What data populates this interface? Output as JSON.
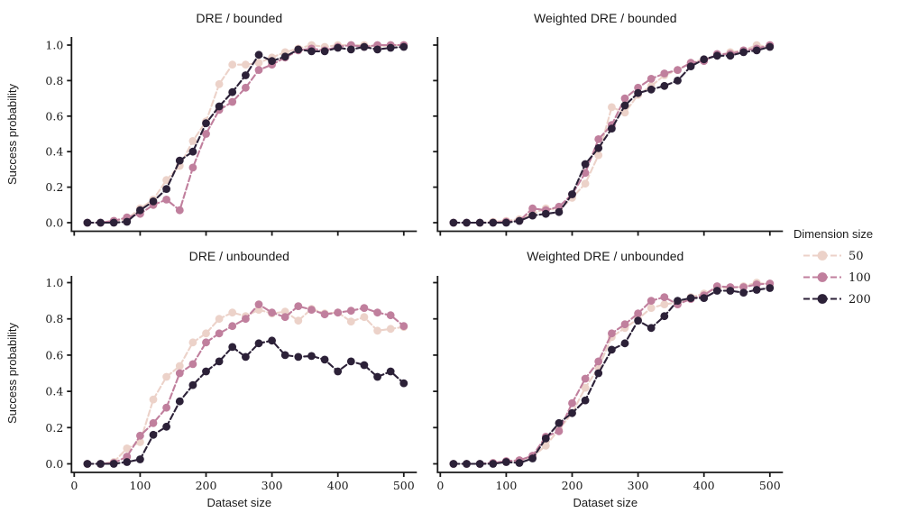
{
  "figure": {
    "background": "#ffffff",
    "text_color": "#1a1a1a",
    "axis_color": "#1a1a1a",
    "ylabel": "Success probability",
    "xlabel": "Dataset size"
  },
  "legend": {
    "title": "Dimension size",
    "entries": [
      {
        "label": "50",
        "color": "#ecd2c9"
      },
      {
        "label": "100",
        "color": "#c07f9d"
      },
      {
        "label": "200",
        "color": "#2c2138"
      }
    ]
  },
  "axes": {
    "x_tick_labels": [
      "0",
      "100",
      "200",
      "300",
      "400",
      "500"
    ],
    "x_tick_values": [
      0,
      100,
      200,
      300,
      400,
      500
    ],
    "y_tick_labels": [
      "0.0",
      "0.2",
      "0.4",
      "0.6",
      "0.8",
      "1.0"
    ],
    "y_tick_values": [
      0.0,
      0.2,
      0.4,
      0.6,
      0.8,
      1.0
    ],
    "xlim": [
      -6,
      520
    ],
    "ylim": [
      0,
      1.05
    ],
    "grid": false
  },
  "chart_data": [
    {
      "type": "line",
      "title": "DRE / bounded",
      "xlabel": "",
      "ylabel": "Success probability",
      "x": [
        20,
        40,
        60,
        80,
        100,
        120,
        140,
        160,
        180,
        200,
        220,
        240,
        260,
        280,
        300,
        320,
        340,
        360,
        380,
        400,
        420,
        440,
        460,
        480,
        500
      ],
      "series": [
        {
          "name": "50",
          "values": [
            0,
            0,
            0.01,
            0.02,
            0.08,
            0.13,
            0.24,
            0.32,
            0.46,
            0.57,
            0.78,
            0.89,
            0.89,
            0.9,
            0.93,
            0.96,
            0.98,
            1.0,
            0.99,
            1.0,
            1.0,
            1.0,
            0.99,
            1.0,
            1.0
          ]
        },
        {
          "name": "100",
          "values": [
            0,
            0,
            0.01,
            0.03,
            0.05,
            0.1,
            0.13,
            0.07,
            0.31,
            0.5,
            0.635,
            0.68,
            0.76,
            0.86,
            0.89,
            0.93,
            0.97,
            0.98,
            0.97,
            0.99,
            1.0,
            0.99,
            1.0,
            1.0,
            1.0
          ]
        },
        {
          "name": "200",
          "values": [
            0,
            0,
            0,
            0.005,
            0.07,
            0.12,
            0.19,
            0.35,
            0.4,
            0.56,
            0.655,
            0.735,
            0.83,
            0.945,
            0.91,
            0.935,
            0.975,
            0.965,
            0.965,
            0.985,
            0.975,
            0.99,
            0.975,
            0.985,
            0.99
          ]
        }
      ]
    },
    {
      "type": "line",
      "title": "Weighted DRE / bounded",
      "xlabel": "",
      "ylabel": "",
      "x": [
        20,
        40,
        60,
        80,
        100,
        120,
        140,
        160,
        180,
        200,
        220,
        240,
        260,
        280,
        300,
        320,
        340,
        360,
        380,
        400,
        420,
        440,
        460,
        480,
        500
      ],
      "series": [
        {
          "name": "50",
          "values": [
            0,
            0,
            0,
            0.005,
            0.01,
            0.02,
            0.05,
            0.08,
            0.07,
            0.14,
            0.22,
            0.38,
            0.65,
            0.62,
            0.72,
            0.77,
            0.83,
            0.86,
            0.9,
            0.92,
            0.94,
            0.96,
            0.97,
            1.0,
            0.99
          ]
        },
        {
          "name": "100",
          "values": [
            0,
            0,
            0,
            0,
            0.005,
            0.01,
            0.08,
            0.07,
            0.09,
            0.16,
            0.28,
            0.47,
            0.55,
            0.7,
            0.76,
            0.81,
            0.84,
            0.86,
            0.9,
            0.91,
            0.95,
            0.95,
            0.97,
            0.98,
            1.0
          ]
        },
        {
          "name": "200",
          "values": [
            0,
            0,
            0,
            0,
            0,
            0.01,
            0.04,
            0.05,
            0.06,
            0.16,
            0.33,
            0.42,
            0.53,
            0.66,
            0.73,
            0.75,
            0.77,
            0.8,
            0.88,
            0.92,
            0.94,
            0.94,
            0.96,
            0.97,
            0.99
          ]
        }
      ]
    },
    {
      "type": "line",
      "title": "DRE / unbounded",
      "xlabel": "Dataset size",
      "ylabel": "Success probability",
      "x": [
        20,
        40,
        60,
        80,
        100,
        120,
        140,
        160,
        180,
        200,
        220,
        240,
        260,
        280,
        300,
        320,
        340,
        360,
        380,
        400,
        420,
        440,
        460,
        480,
        500
      ],
      "series": [
        {
          "name": "50",
          "values": [
            0,
            0,
            0.01,
            0.085,
            0.12,
            0.355,
            0.48,
            0.54,
            0.67,
            0.72,
            0.8,
            0.835,
            0.815,
            0.85,
            0.83,
            0.84,
            0.79,
            0.855,
            0.83,
            0.835,
            0.785,
            0.81,
            0.735,
            0.745,
            0.755
          ]
        },
        {
          "name": "100",
          "values": [
            0,
            0,
            0.005,
            0.04,
            0.155,
            0.225,
            0.31,
            0.5,
            0.55,
            0.67,
            0.72,
            0.76,
            0.8,
            0.88,
            0.835,
            0.81,
            0.87,
            0.85,
            0.825,
            0.835,
            0.845,
            0.86,
            0.835,
            0.82,
            0.76
          ]
        },
        {
          "name": "200",
          "values": [
            0,
            0,
            0,
            0.01,
            0.025,
            0.16,
            0.205,
            0.345,
            0.435,
            0.51,
            0.565,
            0.645,
            0.59,
            0.665,
            0.68,
            0.6,
            0.59,
            0.595,
            0.575,
            0.51,
            0.565,
            0.545,
            0.48,
            0.51,
            0.445
          ]
        }
      ]
    },
    {
      "type": "line",
      "title": "Weighted DRE / unbounded",
      "xlabel": "Dataset size",
      "ylabel": "",
      "x": [
        20,
        40,
        60,
        80,
        100,
        120,
        140,
        160,
        180,
        200,
        220,
        240,
        260,
        280,
        300,
        320,
        340,
        360,
        380,
        400,
        420,
        440,
        460,
        480,
        500
      ],
      "series": [
        {
          "name": "50",
          "values": [
            0,
            0,
            0,
            0.005,
            0.01,
            0.02,
            0.04,
            0.1,
            0.19,
            0.28,
            0.42,
            0.53,
            0.7,
            0.75,
            0.8,
            0.86,
            0.88,
            0.89,
            0.92,
            0.94,
            0.97,
            0.97,
            0.98,
            1.0,
            0.99
          ]
        },
        {
          "name": "100",
          "values": [
            0,
            0,
            0,
            0.005,
            0.015,
            0.02,
            0.045,
            0.15,
            0.18,
            0.335,
            0.47,
            0.565,
            0.72,
            0.77,
            0.83,
            0.9,
            0.92,
            0.88,
            0.91,
            0.93,
            0.98,
            0.975,
            0.975,
            0.99,
            0.995
          ]
        },
        {
          "name": "200",
          "values": [
            0,
            0,
            0,
            0,
            0.01,
            0.005,
            0.03,
            0.14,
            0.225,
            0.28,
            0.35,
            0.5,
            0.63,
            0.665,
            0.79,
            0.75,
            0.815,
            0.9,
            0.915,
            0.915,
            0.955,
            0.955,
            0.945,
            0.96,
            0.97
          ]
        }
      ]
    }
  ]
}
